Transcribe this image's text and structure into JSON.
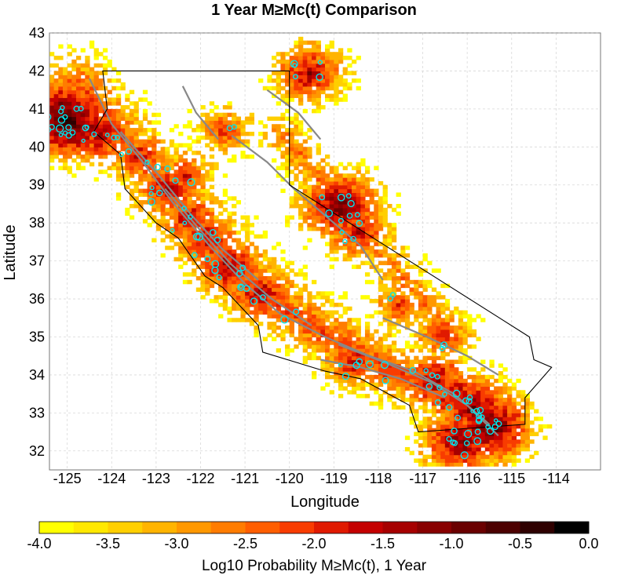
{
  "chart_data": {
    "type": "heatmap",
    "title": "1 Year M≥Mc(t) Comparison",
    "xlabel": "Longitude",
    "ylabel": "Latitude",
    "x_ticks": [
      "-125",
      "-124",
      "-123",
      "-122",
      "-121",
      "-120",
      "-119",
      "-118",
      "-117",
      "-116",
      "-115",
      "-114"
    ],
    "y_ticks": [
      "43",
      "42",
      "41",
      "40",
      "39",
      "38",
      "37",
      "36",
      "35",
      "34",
      "33",
      "32"
    ],
    "xlim": [
      -125.4,
      -113.0
    ],
    "ylim": [
      31.5,
      43.0
    ],
    "grid": true,
    "colorbar": {
      "label": "Log10 Probability M≥Mc(t), 1 Year",
      "ticks": [
        "-4.0",
        "-3.5",
        "-3.0",
        "-2.5",
        "-2.0",
        "-1.5",
        "-1.0",
        "-0.5",
        "0.0"
      ],
      "range": [
        -4.0,
        0.0
      ],
      "colors": [
        "#ffff00",
        "#ffe800",
        "#ffcf00",
        "#ffb400",
        "#ff9800",
        "#ff7c00",
        "#ff5e00",
        "#f83c00",
        "#e01a00",
        "#c40000",
        "#a60000",
        "#880000",
        "#6a0000",
        "#4c0000",
        "#2e0000",
        "#000000"
      ]
    },
    "event_color": "#00e5ee",
    "fault_color": "#888888",
    "outline_color": "#000000",
    "hotspots": [
      {
        "lon": -125.1,
        "lat": 40.7,
        "value": -0.3
      },
      {
        "lon": -124.8,
        "lat": 40.5,
        "value": -0.8
      },
      {
        "lon": -124.3,
        "lat": 40.3,
        "value": -1.3
      },
      {
        "lon": -123.4,
        "lat": 39.7,
        "value": -1.6
      },
      {
        "lon": -122.8,
        "lat": 38.8,
        "value": -1.4
      },
      {
        "lon": -122.3,
        "lat": 38.1,
        "value": -1.5
      },
      {
        "lon": -121.9,
        "lat": 37.5,
        "value": -1.4
      },
      {
        "lon": -121.4,
        "lat": 36.8,
        "value": -1.2
      },
      {
        "lon": -120.7,
        "lat": 36.1,
        "value": -1.3
      },
      {
        "lon": -120.2,
        "lat": 35.6,
        "value": -2.0
      },
      {
        "lon": -118.9,
        "lat": 38.4,
        "value": -0.8
      },
      {
        "lon": -118.5,
        "lat": 37.7,
        "value": -1.5
      },
      {
        "lon": -119.6,
        "lat": 41.9,
        "value": -1.3
      },
      {
        "lon": -121.5,
        "lat": 40.4,
        "value": -1.9
      },
      {
        "lon": -117.6,
        "lat": 35.8,
        "value": -2.0
      },
      {
        "lon": -118.6,
        "lat": 34.3,
        "value": -1.6
      },
      {
        "lon": -117.8,
        "lat": 34.1,
        "value": -1.7
      },
      {
        "lon": -116.8,
        "lat": 33.8,
        "value": -1.2
      },
      {
        "lon": -116.3,
        "lat": 33.4,
        "value": -1.3
      },
      {
        "lon": -115.9,
        "lat": 33.1,
        "value": -1.0
      },
      {
        "lon": -115.5,
        "lat": 32.6,
        "value": -0.7
      },
      {
        "lon": -116.2,
        "lat": 32.2,
        "value": -0.9
      },
      {
        "lon": -116.6,
        "lat": 35.0,
        "value": -1.8
      },
      {
        "lon": -122.4,
        "lat": 39.2,
        "value": -1.8
      }
    ]
  }
}
